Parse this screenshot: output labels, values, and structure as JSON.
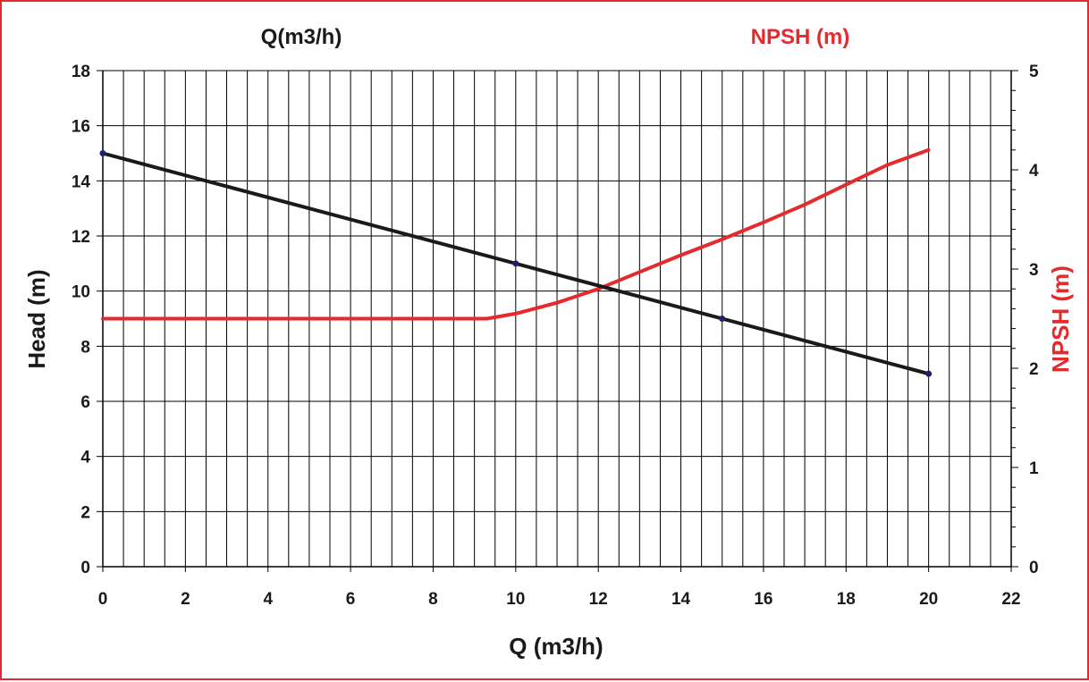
{
  "chart_data": {
    "type": "line",
    "title_left": "Q(m3/h)",
    "title_right": "NPSH (m)",
    "xlabel": "Q (m3/h)",
    "ylabel_left": "Head (m)",
    "ylabel_right": "NPSH (m)",
    "xlim": [
      0,
      22
    ],
    "ylim_left": [
      0,
      18
    ],
    "ylim_right": [
      0,
      5
    ],
    "x_ticks": [
      0,
      2,
      4,
      6,
      8,
      10,
      12,
      14,
      16,
      18,
      20,
      22
    ],
    "y_left_ticks": [
      0,
      2,
      4,
      6,
      8,
      10,
      12,
      14,
      16,
      18
    ],
    "y_right_ticks": [
      0,
      1,
      2,
      3,
      4,
      5
    ],
    "grid": true,
    "colors": {
      "head": "#1a1a1a",
      "npsh": "#e52a2e",
      "markers": "#1f1f6e",
      "frame": "#e52a2e",
      "grid": "#000000"
    },
    "series": [
      {
        "axis": "left",
        "color": "#1a1a1a",
        "points": [
          [
            0,
            15
          ],
          [
            10,
            11
          ],
          [
            15,
            9
          ],
          [
            20,
            7
          ]
        ],
        "fit": [
          [
            0,
            15.0
          ],
          [
            20,
            7.0
          ]
        ]
      },
      {
        "axis": "right",
        "color": "#e52a2e",
        "points": [
          [
            0,
            2.5
          ],
          [
            9.3,
            2.5
          ],
          [
            10,
            2.55
          ],
          [
            11,
            2.66
          ],
          [
            12,
            2.8
          ],
          [
            13,
            2.97
          ],
          [
            14,
            3.14
          ],
          [
            15,
            3.3
          ],
          [
            16,
            3.47
          ],
          [
            17,
            3.65
          ],
          [
            18,
            3.85
          ],
          [
            19,
            4.05
          ],
          [
            20,
            4.2
          ]
        ]
      }
    ]
  }
}
